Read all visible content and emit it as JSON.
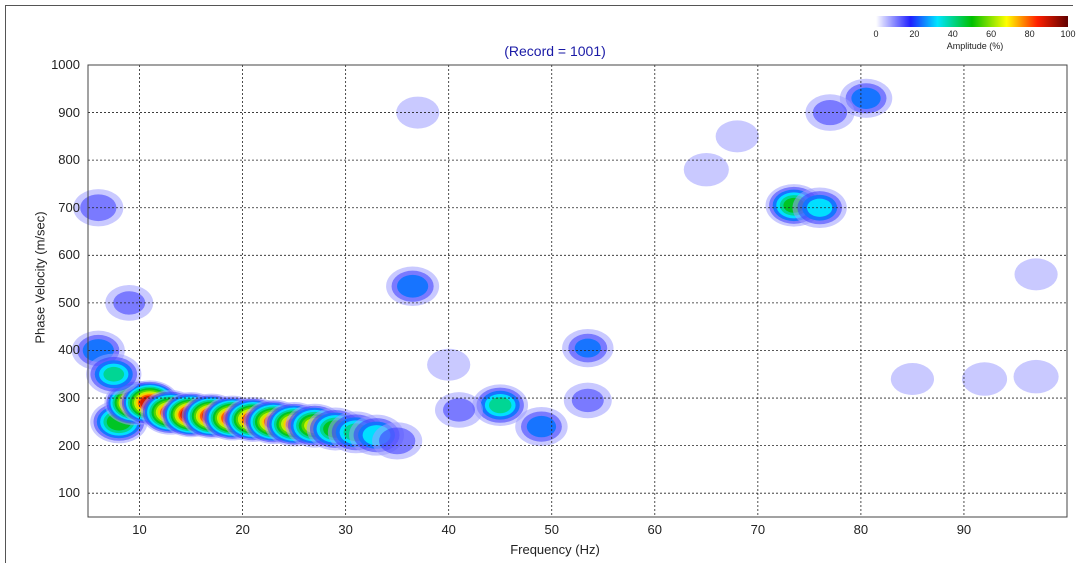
{
  "chart_data": {
    "type": "heatmap",
    "title": "(Record = 1001)",
    "xlabel": "Frequency (Hz)",
    "ylabel": "Phase Velocity (m/sec)",
    "xlim": [
      5,
      100
    ],
    "ylim": [
      50,
      1000
    ],
    "x_ticks": [
      "10",
      "20",
      "30",
      "40",
      "50",
      "60",
      "70",
      "80",
      "90"
    ],
    "y_ticks": [
      "100",
      "200",
      "300",
      "400",
      "500",
      "600",
      "700",
      "800",
      "900",
      "1000"
    ],
    "grid": true,
    "colorbar": {
      "label": "Amplitude (%)",
      "ticks": [
        "0",
        "20",
        "40",
        "60",
        "80",
        "100"
      ],
      "stops": [
        "#ffffff",
        "#2020ff",
        "#00e5ff",
        "#00c000",
        "#ffff00",
        "#ff2000",
        "#600000"
      ]
    },
    "energy_blobs": [
      {
        "f": 8,
        "v": 250,
        "a": 55
      },
      {
        "f": 9.5,
        "v": 290,
        "a": 95
      },
      {
        "f": 11,
        "v": 290,
        "a": 95
      },
      {
        "f": 13,
        "v": 270,
        "a": 88
      },
      {
        "f": 15,
        "v": 265,
        "a": 100
      },
      {
        "f": 17,
        "v": 262,
        "a": 95
      },
      {
        "f": 19,
        "v": 258,
        "a": 92
      },
      {
        "f": 21,
        "v": 255,
        "a": 90
      },
      {
        "f": 23,
        "v": 250,
        "a": 85
      },
      {
        "f": 25,
        "v": 245,
        "a": 80
      },
      {
        "f": 27,
        "v": 242,
        "a": 70
      },
      {
        "f": 29,
        "v": 235,
        "a": 55
      },
      {
        "f": 31,
        "v": 228,
        "a": 45
      },
      {
        "f": 33,
        "v": 222,
        "a": 38
      },
      {
        "f": 35,
        "v": 210,
        "a": 22
      },
      {
        "f": 36.5,
        "v": 535,
        "a": 30
      },
      {
        "f": 45,
        "v": 285,
        "a": 42
      },
      {
        "f": 49,
        "v": 240,
        "a": 28
      },
      {
        "f": 53.5,
        "v": 405,
        "a": 25
      },
      {
        "f": 53.5,
        "v": 295,
        "a": 18
      },
      {
        "f": 41,
        "v": 275,
        "a": 18
      },
      {
        "f": 73.5,
        "v": 705,
        "a": 50
      },
      {
        "f": 76,
        "v": 700,
        "a": 35
      },
      {
        "f": 80.5,
        "v": 930,
        "a": 28
      },
      {
        "f": 77,
        "v": 900,
        "a": 20
      },
      {
        "f": 6,
        "v": 700,
        "a": 22
      },
      {
        "f": 6,
        "v": 400,
        "a": 30
      },
      {
        "f": 7.5,
        "v": 350,
        "a": 40
      },
      {
        "f": 9,
        "v": 500,
        "a": 18
      },
      {
        "f": 65,
        "v": 780,
        "a": 14
      },
      {
        "f": 68,
        "v": 850,
        "a": 12
      },
      {
        "f": 85,
        "v": 340,
        "a": 12
      },
      {
        "f": 92,
        "v": 340,
        "a": 14
      },
      {
        "f": 97,
        "v": 345,
        "a": 14
      },
      {
        "f": 97,
        "v": 560,
        "a": 12
      },
      {
        "f": 40,
        "v": 370,
        "a": 12
      },
      {
        "f": 37,
        "v": 900,
        "a": 12
      }
    ]
  }
}
